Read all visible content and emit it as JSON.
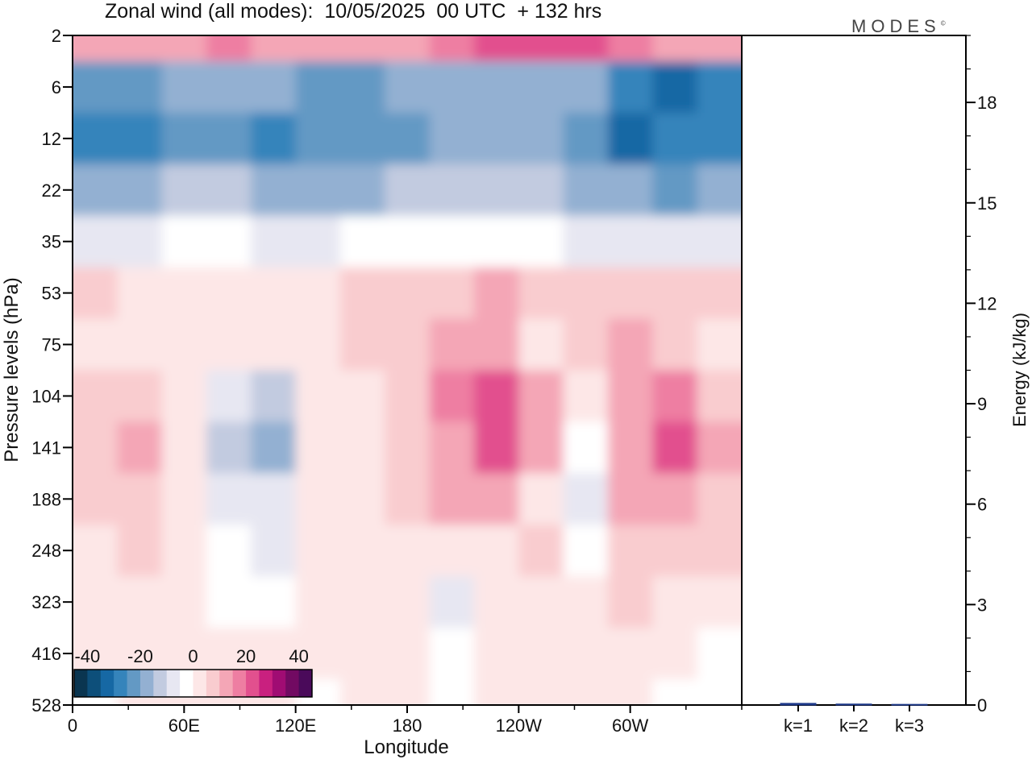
{
  "header": {
    "title": "Zonal wind (all modes):  10/05/2025  00 UTC  + 132 hrs",
    "brand": "MODES",
    "brand_mark": "©"
  },
  "chart_data": [
    {
      "type": "heatmap",
      "title": "Zonal wind (all modes):  10/05/2025  00 UTC  + 132 hrs",
      "xlabel": "Longitude",
      "ylabel": "Pressure levels (hPa)",
      "x_ticks": [
        "0",
        "60E",
        "120E",
        "180",
        "120W",
        "60W"
      ],
      "x_tick_degrees": [
        0,
        60,
        120,
        180,
        240,
        300
      ],
      "xlim": [
        0,
        360
      ],
      "y_ticks": [
        "2",
        "6",
        "12",
        "22",
        "35",
        "53",
        "75",
        "104",
        "141",
        "188",
        "248",
        "323",
        "416",
        "528"
      ],
      "y_scale": "model levels (2 at top, 528 at bottom)",
      "colorbar": {
        "labels": [
          "-40",
          "-20",
          "0",
          "20",
          "40"
        ],
        "label_values": [
          -40,
          -20,
          0,
          20,
          40
        ],
        "range": [
          -45,
          45
        ],
        "step": 5,
        "colors": [
          "#0a3550",
          "#0d4f7a",
          "#1668a4",
          "#3584bb",
          "#6399c4",
          "#93b0d2",
          "#c2cbe0",
          "#e7e7f2",
          "#ffffff",
          "#fde7e7",
          "#f9cccf",
          "#f4a6b6",
          "#ee7ea2",
          "#e2508e",
          "#c9207f",
          "#a00c73",
          "#720a62",
          "#4a0a5a"
        ],
        "placement": "bottom-left"
      },
      "levels_zonal_wind": [
        {
          "level": "2",
          "values_by_longitude": [
            10,
            12,
            14,
            15,
            12,
            10,
            11,
            13,
            16,
            20,
            24,
            22,
            16,
            12,
            10
          ]
        },
        {
          "level": "6",
          "values_by_longitude": [
            -22,
            -24,
            -20,
            -18,
            -20,
            -23,
            -22,
            -20,
            -18,
            -16,
            -18,
            -20,
            -30,
            -34,
            -28
          ]
        },
        {
          "level": "12",
          "values_by_longitude": [
            -28,
            -26,
            -24,
            -22,
            -26,
            -24,
            -22,
            -22,
            -20,
            -18,
            -20,
            -22,
            -32,
            -30,
            -26
          ]
        },
        {
          "level": "22",
          "values_by_longitude": [
            -18,
            -16,
            -14,
            -12,
            -16,
            -18,
            -16,
            -15,
            -14,
            -13,
            -15,
            -16,
            -18,
            -22,
            -20
          ]
        },
        {
          "level": "35",
          "values_by_longitude": [
            -6,
            -6,
            -5,
            -5,
            -6,
            -6,
            -5,
            -5,
            -4,
            -4,
            -5,
            -6,
            -6,
            -7,
            -6
          ]
        },
        {
          "level": "53",
          "values_by_longitude": [
            6,
            4,
            2,
            3,
            2,
            4,
            6,
            6,
            8,
            10,
            6,
            6,
            6,
            6,
            6
          ]
        },
        {
          "level": "75",
          "values_by_longitude": [
            4,
            2,
            0,
            1,
            2,
            3,
            5,
            6,
            10,
            12,
            4,
            6,
            10,
            8,
            4
          ]
        },
        {
          "level": "104",
          "values_by_longitude": [
            6,
            8,
            4,
            -10,
            -14,
            2,
            4,
            6,
            16,
            22,
            14,
            2,
            12,
            16,
            8
          ]
        },
        {
          "level": "141",
          "values_by_longitude": [
            8,
            12,
            4,
            -14,
            -16,
            0,
            4,
            8,
            14,
            22,
            10,
            -2,
            14,
            20,
            12
          ]
        },
        {
          "level": "188",
          "values_by_longitude": [
            6,
            8,
            4,
            -10,
            -10,
            0,
            3,
            6,
            10,
            10,
            4,
            -8,
            10,
            12,
            8
          ]
        },
        {
          "level": "248",
          "values_by_longitude": [
            4,
            6,
            4,
            -4,
            -6,
            0,
            2,
            4,
            2,
            4,
            6,
            -4,
            8,
            8,
            6
          ]
        },
        {
          "level": "323",
          "values_by_longitude": [
            2,
            4,
            2,
            -2,
            -2,
            0,
            2,
            2,
            -6,
            4,
            4,
            2,
            6,
            4,
            0
          ]
        },
        {
          "level": "416",
          "values_by_longitude": [
            0,
            2,
            2,
            0,
            0,
            0,
            0,
            2,
            -4,
            2,
            2,
            2,
            2,
            0,
            -2
          ]
        },
        {
          "level": "528",
          "values_by_longitude": [
            -2,
            0,
            0,
            0,
            0,
            -2,
            0,
            0,
            -2,
            0,
            0,
            0,
            0,
            -2,
            -4
          ]
        }
      ]
    },
    {
      "type": "bar",
      "ylabel": "Energy (kJ/kg)",
      "categories": [
        "k=1",
        "k=2",
        "k=3"
      ],
      "values": [
        0.05,
        0.03,
        0.02
      ],
      "ylim": [
        0,
        20
      ],
      "y_ticks": [
        "0",
        "3",
        "6",
        "9",
        "12",
        "15",
        "18"
      ],
      "y_tick_values": [
        0,
        3,
        6,
        9,
        12,
        15,
        18
      ]
    }
  ]
}
